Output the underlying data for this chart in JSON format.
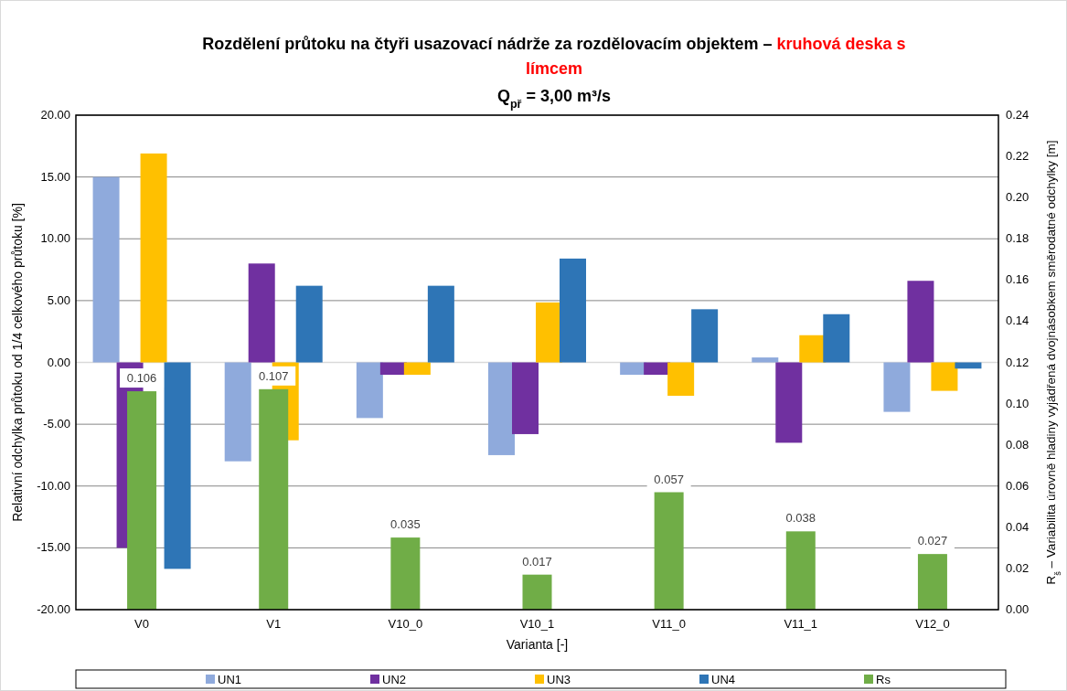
{
  "chart_data": {
    "type": "bar",
    "title": "Rozdělení průtoku na čtyři usazovací nádrže za rozdělovacím objektem – kruhová deska s límcem",
    "subtitle": "Q$_{př}$ = 3,00 m³/s",
    "xlabel": "Varianta [-]",
    "ylabel": "Relativní odchylka průtoku od 1/4 celkového průtoku [%]",
    "y2label": "R$_{š}$ – Variabilita úrovně hladiny vyjádřená dvojnásobkem směrodatné odchylky [m]",
    "categories": [
      "V0",
      "V1",
      "V10_0",
      "V10_1",
      "V11_0",
      "V11_1",
      "V12_0"
    ],
    "series": [
      {
        "name": "UN1",
        "color": "#8faadc",
        "values": [
          15.0,
          -8.0,
          -4.5,
          -7.5,
          -1.0,
          0.4,
          -4.0
        ]
      },
      {
        "name": "UN2",
        "color": "#7030a0",
        "values": [
          -15.0,
          8.0,
          -1.0,
          -5.8,
          -1.0,
          -6.5,
          6.6
        ]
      },
      {
        "name": "UN3",
        "color": "#ffc000",
        "values": [
          16.9,
          -6.3,
          -1.0,
          4.85,
          -2.7,
          2.2,
          -2.3
        ]
      },
      {
        "name": "UN4",
        "color": "#2e75b6",
        "values": [
          -16.7,
          6.2,
          6.2,
          8.4,
          4.3,
          3.9,
          -0.5
        ]
      },
      {
        "name": "Rs",
        "color": "#70ad47",
        "axis": "y2",
        "values": [
          0.106,
          0.107,
          0.035,
          0.017,
          0.057,
          0.038,
          0.027
        ],
        "value_labels": [
          "0.106",
          "0.107",
          "0.035",
          "0.017",
          "0.057",
          "0.038",
          "0.027"
        ]
      }
    ],
    "ylim": [
      -20,
      20
    ],
    "yticks": [
      {
        "value": -20,
        "label": "-20.00"
      },
      {
        "value": -15,
        "label": "-15.00"
      },
      {
        "value": -10,
        "label": "-10.00"
      },
      {
        "value": -5,
        "label": "-5.00"
      },
      {
        "value": 0,
        "label": "0.00"
      },
      {
        "value": 5,
        "label": "5.00"
      },
      {
        "value": 10,
        "label": "10.00"
      },
      {
        "value": 15,
        "label": "15.00"
      },
      {
        "value": 20,
        "label": "20.00"
      }
    ],
    "y2lim": [
      0,
      0.24
    ],
    "y2ticks": [
      {
        "value": 0,
        "label": "0.00"
      },
      {
        "value": 0.02,
        "label": "0.02"
      },
      {
        "value": 0.04,
        "label": "0.04"
      },
      {
        "value": 0.06,
        "label": "0.06"
      },
      {
        "value": 0.08,
        "label": "0.08"
      },
      {
        "value": 0.1,
        "label": "0.10"
      },
      {
        "value": 0.12,
        "label": "0.12"
      },
      {
        "value": 0.14,
        "label": "0.14"
      },
      {
        "value": 0.16,
        "label": "0.16"
      },
      {
        "value": 0.18,
        "label": "0.18"
      },
      {
        "value": 0.2,
        "label": "0.20"
      },
      {
        "value": 0.22,
        "label": "0.22"
      },
      {
        "value": 0.24,
        "label": "0.24"
      }
    ],
    "grid": "y",
    "legend": "bottom"
  }
}
